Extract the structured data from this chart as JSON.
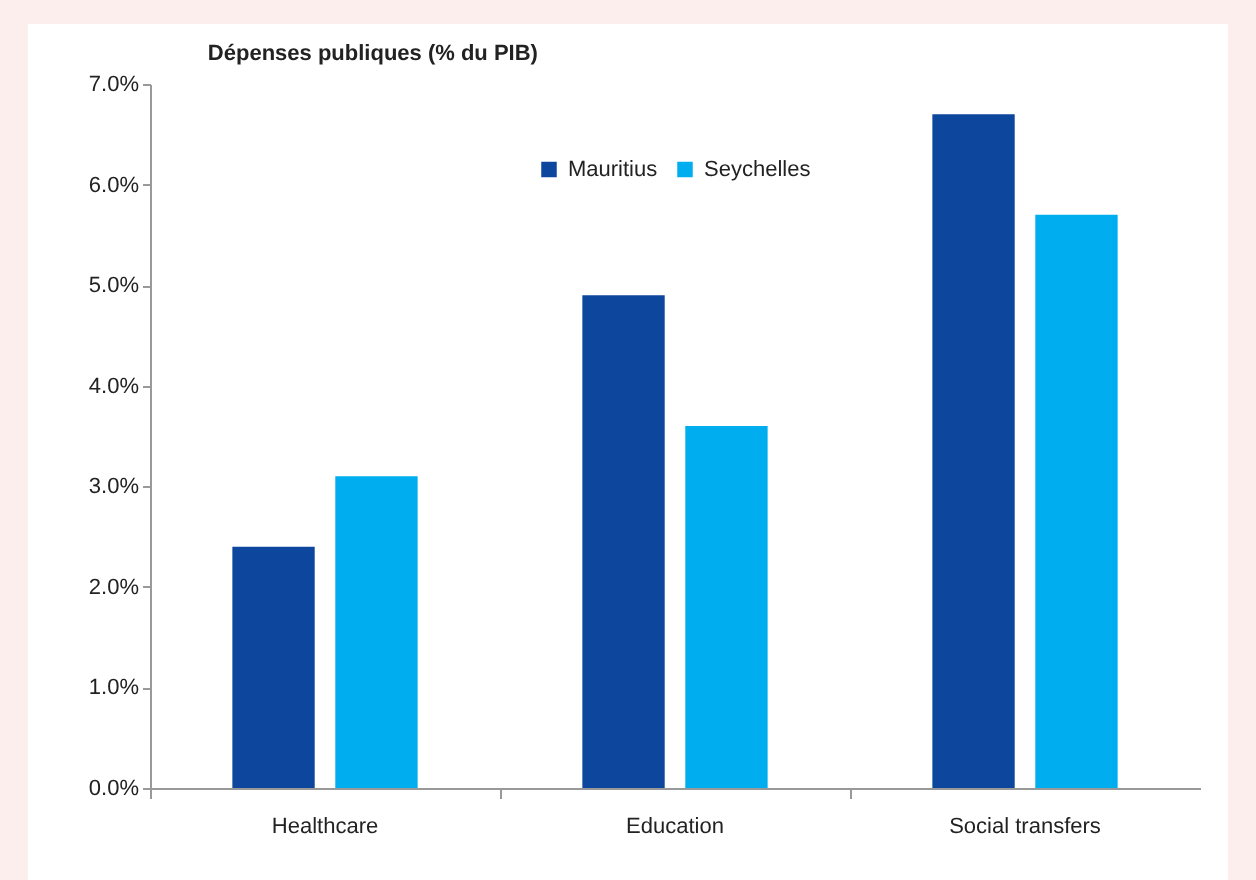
{
  "chart_data": {
    "type": "bar",
    "title": "Dépenses publiques (% du PIB)",
    "categories": [
      "Healthcare",
      "Education",
      "Social transfers"
    ],
    "series": [
      {
        "name": "Mauritius",
        "color": "#0c479d",
        "values": [
          2.4,
          4.9,
          6.7
        ]
      },
      {
        "name": "Seychelles",
        "color": "#00aeef",
        "values": [
          3.1,
          3.6,
          5.7
        ]
      }
    ],
    "ylim": [
      0,
      7
    ],
    "yticks": [
      {
        "value": 0,
        "label": "0.0%"
      },
      {
        "value": 1,
        "label": "1.0%"
      },
      {
        "value": 2,
        "label": "2.0%"
      },
      {
        "value": 3,
        "label": "3.0%"
      },
      {
        "value": 4,
        "label": "4.0%"
      },
      {
        "value": 5,
        "label": "5.0%"
      },
      {
        "value": 6,
        "label": "6.0%"
      },
      {
        "value": 7,
        "label": "7.0%"
      }
    ],
    "grid": false,
    "legend": "top"
  }
}
